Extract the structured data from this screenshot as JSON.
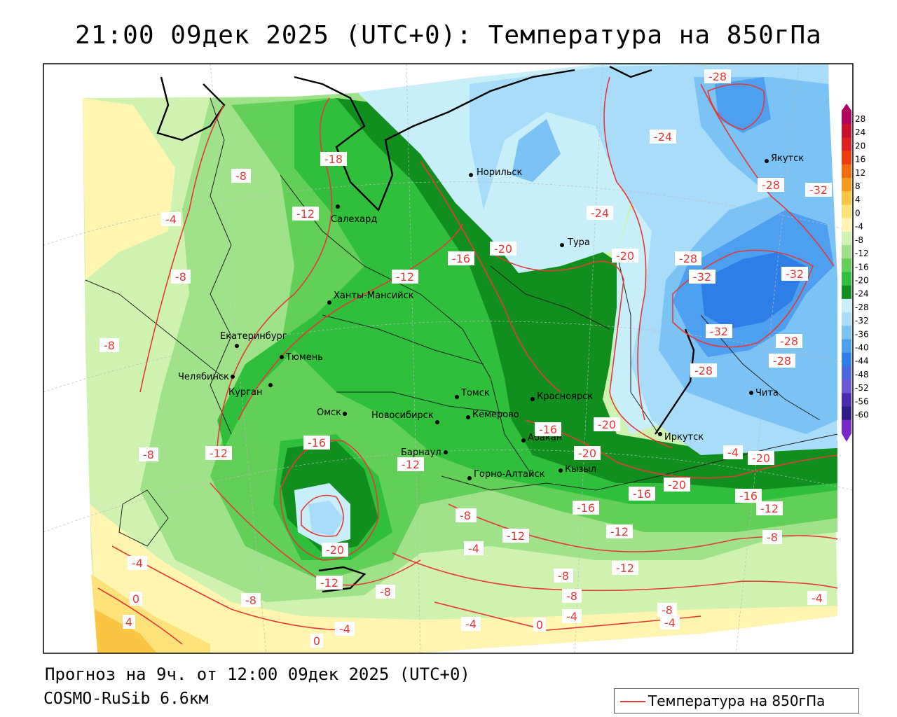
{
  "title": "21:00 09дек 2025 (UTC+0): Температура на 850гПа",
  "footer": {
    "forecast": "Прогноз на 9ч. от 12:00 09дек 2025 (UTC+0)",
    "model": "COSMO-RuSib 6.6км"
  },
  "legend": {
    "label": "Температура на 850гПа",
    "line_color": "#e53935"
  },
  "colorbar": {
    "levels": [
      "28",
      "24",
      "20",
      "16",
      "12",
      "8",
      "4",
      "0",
      "-4",
      "-8",
      "-12",
      "-16",
      "-20",
      "-24",
      "-28",
      "-32",
      "-36",
      "-40",
      "-44",
      "-48",
      "-52",
      "-56",
      "-60"
    ],
    "colors": [
      "#b2005e",
      "#c8102e",
      "#e02020",
      "#ee3b10",
      "#f36a10",
      "#f79a20",
      "#fbc544",
      "#fde27a",
      "#fff4b0",
      "#cff2b0",
      "#9fe28a",
      "#62cf57",
      "#2fbf3a",
      "#108f1e",
      "#c8eefa",
      "#a9dcf9",
      "#7cc3f5",
      "#4e9ff0",
      "#2f7de6",
      "#4b6ae0",
      "#6e57d6",
      "#4b2bb0",
      "#2e1a8a",
      "#7a28c8"
    ]
  },
  "cities": [
    {
      "name": "Норильск"
    },
    {
      "name": "Салехард"
    },
    {
      "name": "Тура"
    },
    {
      "name": "Якутск"
    },
    {
      "name": "Ханты-Мансийск"
    },
    {
      "name": "Екатеринбург"
    },
    {
      "name": "Тюмень"
    },
    {
      "name": "Челябинск"
    },
    {
      "name": "Курган"
    },
    {
      "name": "Омск"
    },
    {
      "name": "Томск"
    },
    {
      "name": "Новосибирск"
    },
    {
      "name": "Кемерово"
    },
    {
      "name": "Красноярск"
    },
    {
      "name": "Барнаул"
    },
    {
      "name": "Абакан"
    },
    {
      "name": "Иркутск"
    },
    {
      "name": "Горно-Алтайск"
    },
    {
      "name": "Кызыл"
    },
    {
      "name": "Чита"
    }
  ],
  "contour_labels": [
    "-28",
    "-24",
    "-18",
    "-8",
    "-12",
    "-4",
    "-8",
    "-16",
    "-20",
    "-24",
    "-20",
    "-12",
    "-8",
    "-28",
    "-32",
    "-28",
    "-32",
    "-32",
    "-32",
    "-28",
    "-28",
    "-28",
    "-16",
    "-20",
    "-12",
    "-8",
    "-16",
    "-20",
    "-20",
    "-12",
    "-16",
    "-20",
    "-16",
    "-12",
    "-20",
    "-16",
    "-12",
    "-4",
    "-8",
    "-12",
    "-12",
    "-8",
    "-12",
    "-8",
    "-4",
    "0",
    "4",
    "-8",
    "-8",
    "-4",
    "-4",
    "0",
    "-8",
    "-4",
    "-4",
    "-4",
    "0",
    "-8",
    "-4",
    "-8"
  ]
}
